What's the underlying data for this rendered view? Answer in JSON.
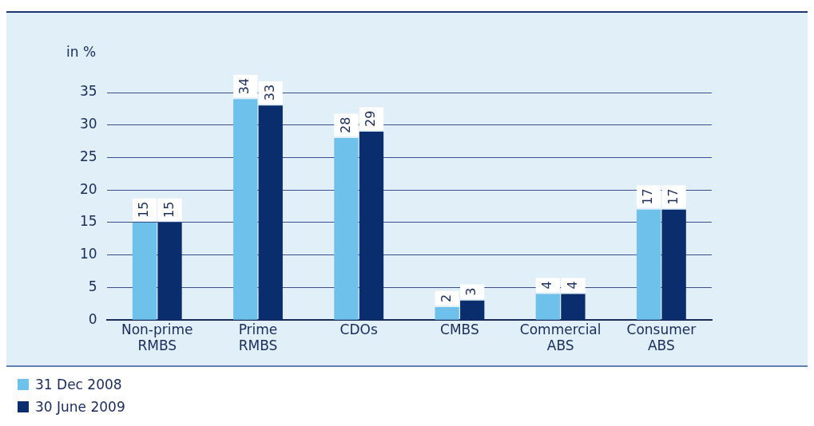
{
  "chart_data": {
    "type": "bar",
    "ylabel": "in %",
    "categories": [
      "Non-prime RMBS",
      "Prime RMBS",
      "CDOs",
      "CMBS",
      "Commercial ABS",
      "Consumer ABS"
    ],
    "series": [
      {
        "name": "31 Dec 2008",
        "color": "#6ec1ea",
        "values": [
          15,
          34,
          28,
          2,
          4,
          17
        ]
      },
      {
        "name": "30 June 2009",
        "color": "#0a2d6e",
        "values": [
          15,
          33,
          29,
          3,
          4,
          17
        ]
      }
    ],
    "ylim": [
      0,
      35
    ],
    "yticks": [
      0,
      5,
      10,
      15,
      20,
      25,
      30,
      35
    ],
    "grid": "y",
    "legend": "bottom left",
    "data_labels": true
  }
}
